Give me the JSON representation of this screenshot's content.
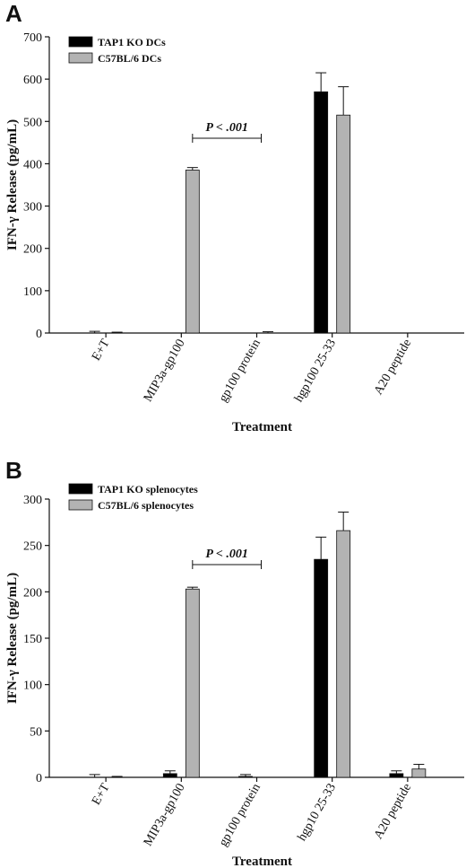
{
  "chart_data": [
    {
      "type": "bar",
      "panel": "A",
      "categories": [
        "E+T",
        "MIP3a-gp100",
        "gp100 protein",
        "hgp100 25-33",
        "A20 peptide"
      ],
      "series": [
        {
          "name": "TAP1 KO DCs",
          "color": "#000000",
          "values": [
            0,
            0,
            0,
            570,
            0
          ],
          "errors": [
            4,
            0,
            0,
            45,
            0
          ]
        },
        {
          "name": "C57BL/6 DCs",
          "color": "#b3b3b3",
          "values": [
            0,
            385,
            0,
            515,
            0
          ],
          "errors": [
            2,
            6,
            3,
            67,
            0
          ]
        }
      ],
      "xlabel": "Treatment",
      "ylabel": "IFN-γ Release (pg/mL)",
      "ylim": [
        0,
        700
      ],
      "yticks": [
        0,
        100,
        200,
        300,
        400,
        500,
        600,
        700
      ],
      "annotation": {
        "text": "P < .001",
        "from": 1,
        "to": 2
      },
      "legend_position": "top-left",
      "grid": false
    },
    {
      "type": "bar",
      "panel": "B",
      "categories": [
        "E+T",
        "MIP3a-gp100",
        "gp100 protein",
        "hgp10 25-33",
        "A20 peptide"
      ],
      "series": [
        {
          "name": "TAP1 KO splenocytes",
          "color": "#000000",
          "values": [
            0,
            4,
            1,
            235,
            4
          ],
          "errors": [
            3,
            3,
            2,
            24,
            3
          ]
        },
        {
          "name": "C57BL/6 splenocytes",
          "color": "#b3b3b3",
          "values": [
            0,
            203,
            0,
            266,
            9
          ],
          "errors": [
            1,
            2,
            0,
            20,
            5
          ]
        }
      ],
      "xlabel": "Treatment",
      "ylabel": "IFN-γ Release (pg/mL)",
      "ylim": [
        0,
        300
      ],
      "yticks": [
        0,
        50,
        100,
        150,
        200,
        250,
        300
      ],
      "annotation": {
        "text": "P < .001",
        "from": 1,
        "to": 2
      },
      "legend_position": "top-left",
      "grid": false
    }
  ]
}
